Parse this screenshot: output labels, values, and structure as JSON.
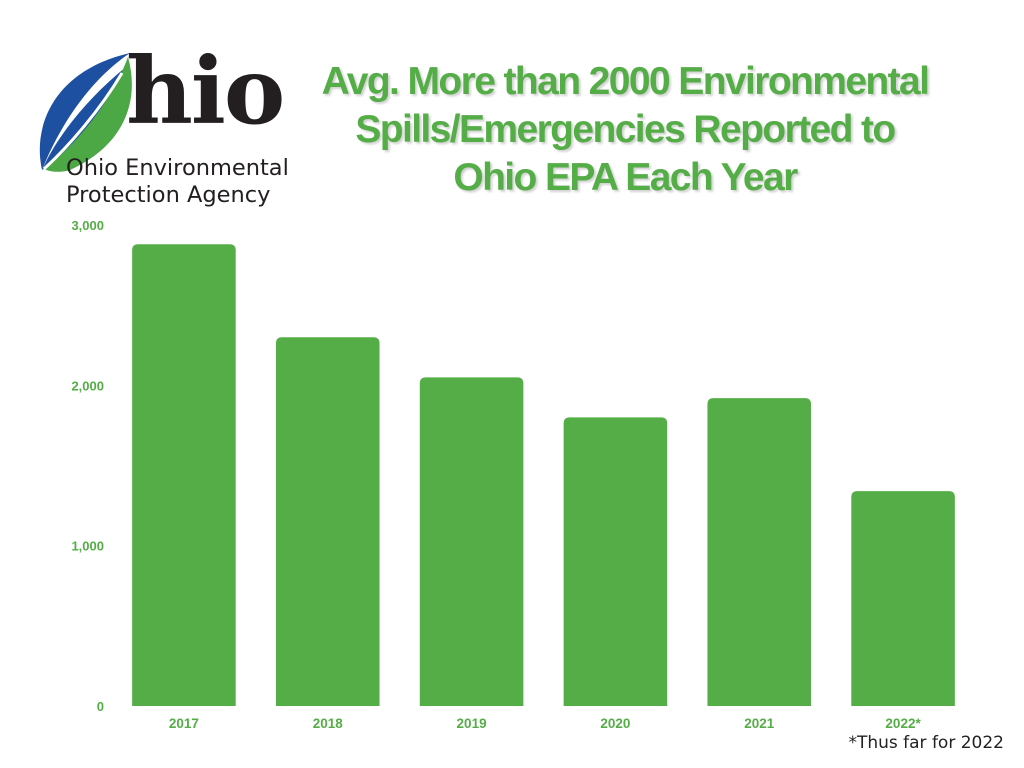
{
  "logo": {
    "word": "hio",
    "line1": "Ohio Environmental",
    "line2": "Protection Agency"
  },
  "colors": {
    "bar": "#55ad47",
    "text": "#55ad47",
    "logo_blue": "#1e50a2",
    "logo_green": "#4ca845"
  },
  "footnote": "*Thus far for 2022",
  "chart_data": {
    "type": "bar",
    "title": "Avg. More than 2000 Environmental\nSpills/Emergencies  Reported to\nOhio EPA Each Year",
    "xlabel": "",
    "ylabel": "",
    "categories": [
      "2017",
      "2018",
      "2019",
      "2020",
      "2021",
      "2022*"
    ],
    "values": [
      2880,
      2300,
      2050,
      1800,
      1920,
      1340
    ],
    "ylim": [
      0,
      3000
    ],
    "yticks": [
      0,
      1000,
      2000,
      3000
    ],
    "ytick_labels": [
      "0",
      "1,000",
      "2,000",
      "3,000"
    ],
    "grid": false,
    "legend": "none"
  }
}
